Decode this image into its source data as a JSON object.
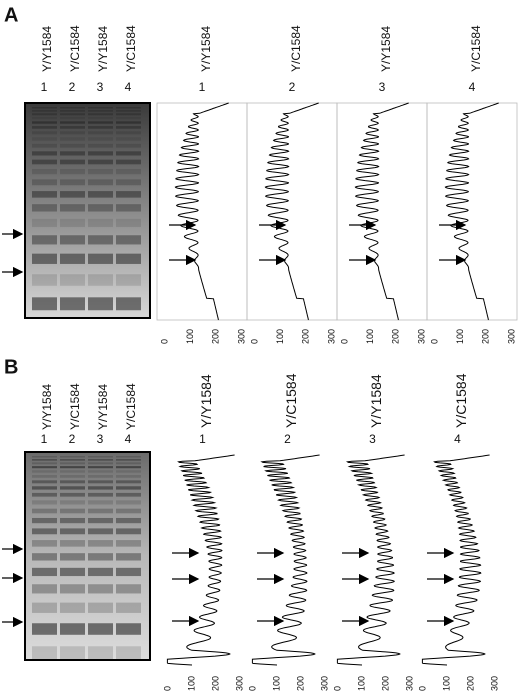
{
  "panels": [
    {
      "label": "A",
      "lanes": [
        {
          "name": "Y/Y1584",
          "number": "1"
        },
        {
          "name": "Y/C1584",
          "number": "2"
        },
        {
          "name": "Y/Y1584",
          "number": "3"
        },
        {
          "name": "Y/C1584",
          "number": "4"
        }
      ],
      "traces": [
        {
          "name": "Y/Y1584",
          "number": "1"
        },
        {
          "name": "Y/C1584",
          "number": "2"
        },
        {
          "name": "Y/Y1584",
          "number": "3"
        },
        {
          "name": "Y/C1584",
          "number": "4"
        }
      ],
      "axis_ticks": [
        "0",
        "100",
        "200",
        "300"
      ]
    },
    {
      "label": "B",
      "lanes": [
        {
          "name": "Y/Y1584",
          "number": "1"
        },
        {
          "name": "Y/C1584",
          "number": "2"
        },
        {
          "name": "Y/Y1584",
          "number": "3"
        },
        {
          "name": "Y/C1584",
          "number": "4"
        }
      ],
      "traces": [
        {
          "name": "Y/Y1584",
          "number": "1"
        },
        {
          "name": "Y/C1584",
          "number": "2"
        },
        {
          "name": "Y/Y1584",
          "number": "3"
        },
        {
          "name": "Y/C1584",
          "number": "4"
        }
      ],
      "axis_ticks": [
        "0",
        "100",
        "200",
        "300"
      ]
    }
  ]
}
